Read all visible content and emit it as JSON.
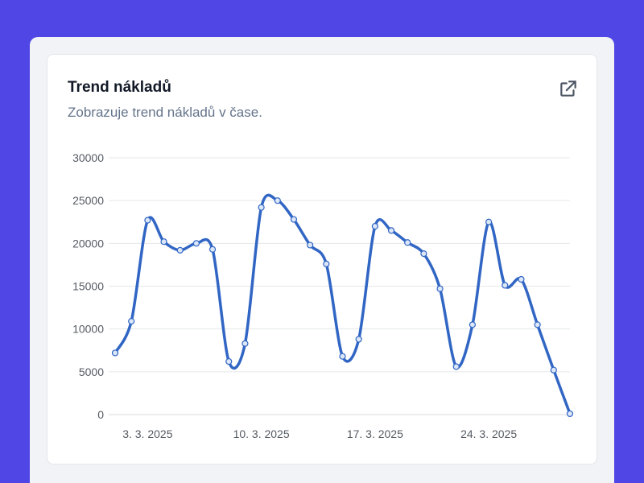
{
  "card": {
    "title": "Trend nákladů",
    "subtitle": "Zobrazuje trend nákladů v čase.",
    "open_icon": "external-link-icon"
  },
  "colors": {
    "background": "#4f46e5",
    "line": "#3166c4",
    "grid": "#e5e7eb"
  },
  "chart_data": {
    "type": "line",
    "title": "Trend nákladů",
    "subtitle": "Zobrazuje trend nákladů v čase.",
    "xlabel": "",
    "ylabel": "",
    "ylim": [
      0,
      30000
    ],
    "y_ticks": [
      0,
      5000,
      10000,
      15000,
      20000,
      25000,
      30000
    ],
    "x_tick_labels": [
      "3. 3. 2025",
      "10. 3. 2025",
      "17. 3. 2025",
      "24. 3. 2025"
    ],
    "x_tick_indices": [
      2,
      9,
      16,
      23
    ],
    "grid": true,
    "legend": "none",
    "x": [
      "1. 3. 2025",
      "2. 3. 2025",
      "3. 3. 2025",
      "4. 3. 2025",
      "5. 3. 2025",
      "6. 3. 2025",
      "7. 3. 2025",
      "8. 3. 2025",
      "9. 3. 2025",
      "10. 3. 2025",
      "11. 3. 2025",
      "12. 3. 2025",
      "13. 3. 2025",
      "14. 3. 2025",
      "15. 3. 2025",
      "16. 3. 2025",
      "17. 3. 2025",
      "18. 3. 2025",
      "19. 3. 2025",
      "20. 3. 2025",
      "21. 3. 2025",
      "22. 3. 2025",
      "23. 3. 2025",
      "24. 3. 2025",
      "25. 3. 2025",
      "26. 3. 2025",
      "27. 3. 2025",
      "28. 3. 2025",
      "29. 3. 2025"
    ],
    "series": [
      {
        "name": "Náklady",
        "values": [
          7200,
          10900,
          22700,
          20200,
          19200,
          20000,
          19300,
          6200,
          8300,
          24200,
          25000,
          22800,
          19800,
          17600,
          6800,
          8800,
          22000,
          21500,
          20100,
          18800,
          14700,
          5600,
          10500,
          22500,
          15100,
          15800,
          10500,
          5200,
          100
        ]
      }
    ]
  }
}
